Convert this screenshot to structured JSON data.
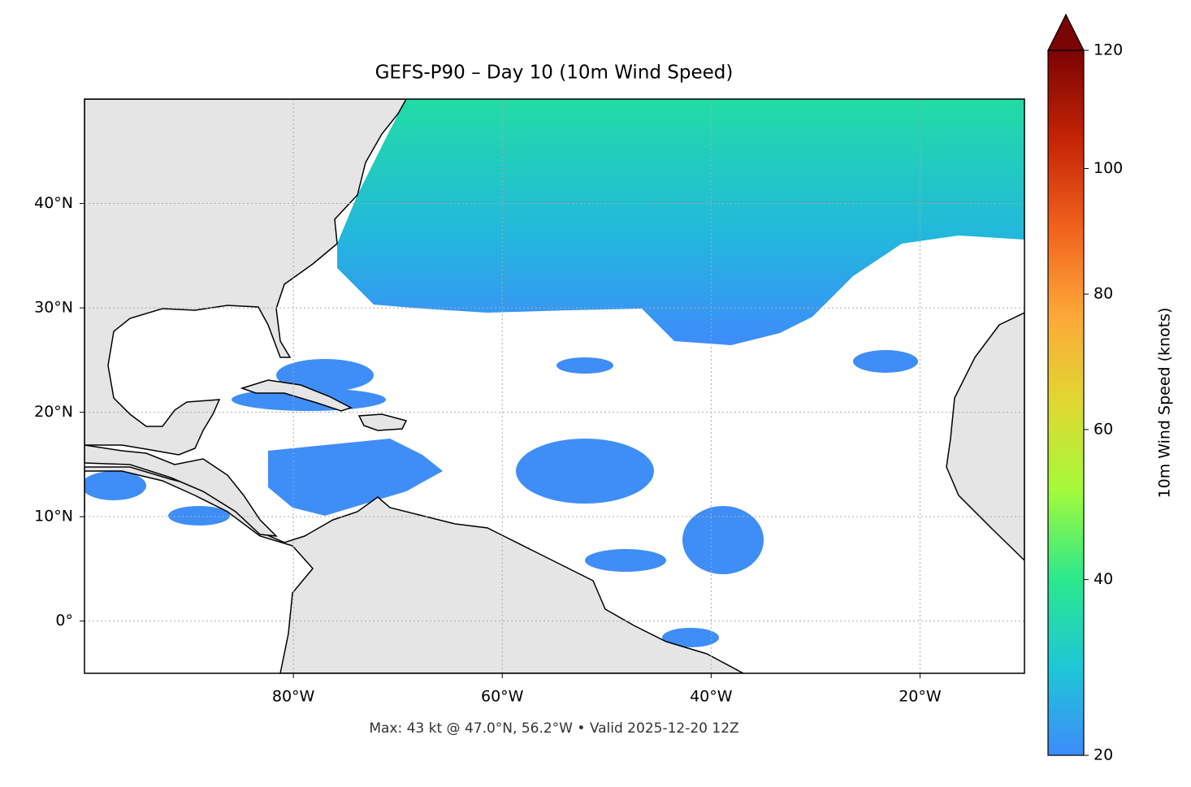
{
  "map": {
    "title": "GEFS-P90 – Day 10 (10m Wind Speed)",
    "footer": "Max: 43 kt @ 47.0°N, 56.2°W • Valid 2025-12-20 12Z",
    "xlim": [
      -100,
      -10
    ],
    "ylim": [
      -5,
      50
    ],
    "lon_ticks": [
      {
        "value": -80,
        "label": "80°W"
      },
      {
        "value": -60,
        "label": "60°W"
      },
      {
        "value": -40,
        "label": "40°W"
      },
      {
        "value": -20,
        "label": "20°W"
      }
    ],
    "lat_ticks": [
      {
        "value": 0,
        "label": "0°"
      },
      {
        "value": 10,
        "label": "10°N"
      },
      {
        "value": 20,
        "label": "20°N"
      },
      {
        "value": 30,
        "label": "30°N"
      },
      {
        "value": 40,
        "label": "40°N"
      }
    ],
    "grid": true,
    "colorbar": {
      "label": "10m Wind Speed (knots)",
      "lim": [
        20,
        120
      ],
      "ticks": [
        20,
        40,
        60,
        80,
        100,
        120
      ],
      "norm_gamma": 0.7,
      "extend": "max",
      "colors": [
        "#3e8bfb",
        "#1ec7d6",
        "#2be88d",
        "#a3fa3a",
        "#e0d832",
        "#fca838",
        "#f0611c",
        "#c42305",
        "#7a0403"
      ]
    }
  }
}
